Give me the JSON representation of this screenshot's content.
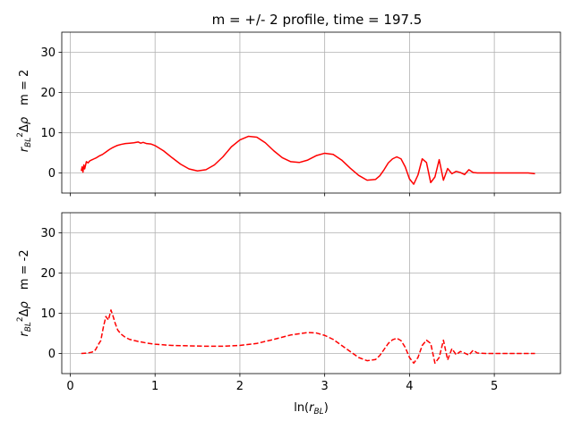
{
  "figure": {
    "title": "m = +/- 2 profile, time = 197.5"
  },
  "chart_data": [
    {
      "type": "line",
      "panel": "top",
      "title": "m = +/- 2 profile, time = 197.5",
      "ylabel_math": "r_{BL}^2 Δρ",
      "ylabel_suffix": "m = 2",
      "xlabel": "",
      "xlim": [
        -0.1,
        5.78
      ],
      "ylim": [
        -5,
        35
      ],
      "xticks": [
        0,
        1,
        2,
        3,
        4,
        5
      ],
      "yticks": [
        0,
        10,
        20,
        30
      ],
      "grid": true,
      "series": [
        {
          "color": "#ff0000",
          "linestyle": "solid",
          "x": [
            0.13,
            0.14,
            0.15,
            0.16,
            0.17,
            0.19,
            0.21,
            0.23,
            0.25,
            0.28,
            0.31,
            0.34,
            0.38,
            0.42,
            0.46,
            0.5,
            0.55,
            0.6,
            0.65,
            0.7,
            0.75,
            0.8,
            0.83,
            0.86,
            0.9,
            0.95,
            1.0,
            1.1,
            1.2,
            1.3,
            1.4,
            1.5,
            1.6,
            1.7,
            1.8,
            1.9,
            2.0,
            2.1,
            2.2,
            2.3,
            2.4,
            2.5,
            2.6,
            2.7,
            2.8,
            2.9,
            3.0,
            3.1,
            3.2,
            3.3,
            3.4,
            3.5,
            3.6,
            3.65,
            3.7,
            3.75,
            3.8,
            3.85,
            3.9,
            3.95,
            4.0,
            4.05,
            4.1,
            4.15,
            4.2,
            4.25,
            4.3,
            4.35,
            4.4,
            4.45,
            4.5,
            4.55,
            4.6,
            4.65,
            4.7,
            4.75,
            4.8,
            4.9,
            5.0,
            5.1,
            5.2,
            5.3,
            5.4,
            5.48
          ],
          "y": [
            0.5,
            1.5,
            0.2,
            2.0,
            1.0,
            2.8,
            2.5,
            3.0,
            3.2,
            3.5,
            3.8,
            4.2,
            4.6,
            5.2,
            5.8,
            6.3,
            6.8,
            7.1,
            7.3,
            7.4,
            7.5,
            7.7,
            7.4,
            7.6,
            7.3,
            7.2,
            6.8,
            5.5,
            3.8,
            2.2,
            1.0,
            0.5,
            0.8,
            2.0,
            4.0,
            6.5,
            8.2,
            9.1,
            8.9,
            7.5,
            5.5,
            3.8,
            2.8,
            2.6,
            3.2,
            4.3,
            4.9,
            4.6,
            3.2,
            1.2,
            -0.6,
            -1.8,
            -1.6,
            -0.7,
            0.8,
            2.5,
            3.5,
            4.0,
            3.5,
            1.5,
            -1.5,
            -2.8,
            -0.5,
            3.5,
            2.6,
            -2.4,
            -1.0,
            3.3,
            -1.8,
            1.1,
            -0.2,
            0.4,
            0.1,
            -0.4,
            0.8,
            0.1,
            0.0,
            0.0,
            0.0,
            0.0,
            0.0,
            0.0,
            0.0,
            -0.2
          ]
        }
      ]
    },
    {
      "type": "line",
      "panel": "bottom",
      "title": "",
      "ylabel_math": "r_{BL}^2 Δρ",
      "ylabel_suffix": "m = -2",
      "xlabel": "ln(r_{BL})",
      "xlim": [
        -0.1,
        5.78
      ],
      "ylim": [
        -5,
        35
      ],
      "xticks": [
        0,
        1,
        2,
        3,
        4,
        5
      ],
      "yticks": [
        0,
        10,
        20,
        30
      ],
      "grid": true,
      "series": [
        {
          "color": "#ff0000",
          "linestyle": "dashed",
          "x": [
            0.13,
            0.2,
            0.25,
            0.28,
            0.3,
            0.33,
            0.36,
            0.39,
            0.42,
            0.45,
            0.48,
            0.5,
            0.53,
            0.56,
            0.6,
            0.65,
            0.7,
            0.8,
            0.9,
            1.0,
            1.2,
            1.4,
            1.6,
            1.8,
            2.0,
            2.2,
            2.4,
            2.6,
            2.8,
            2.9,
            3.0,
            3.1,
            3.2,
            3.3,
            3.4,
            3.5,
            3.6,
            3.65,
            3.7,
            3.75,
            3.8,
            3.85,
            3.9,
            3.95,
            4.0,
            4.05,
            4.1,
            4.15,
            4.2,
            4.25,
            4.3,
            4.35,
            4.4,
            4.45,
            4.5,
            4.55,
            4.6,
            4.65,
            4.7,
            4.75,
            4.8,
            4.9,
            5.0,
            5.1,
            5.2,
            5.3,
            5.4,
            5.48
          ],
          "y": [
            0.0,
            0.1,
            0.3,
            0.5,
            1.0,
            2.2,
            3.2,
            6.5,
            9.2,
            8.3,
            10.8,
            9.6,
            7.5,
            5.8,
            4.8,
            4.0,
            3.5,
            3.0,
            2.6,
            2.3,
            2.0,
            1.9,
            1.8,
            1.8,
            2.0,
            2.5,
            3.5,
            4.6,
            5.2,
            5.1,
            4.5,
            3.5,
            2.0,
            0.5,
            -1.0,
            -1.8,
            -1.5,
            -0.5,
            1.0,
            2.5,
            3.4,
            3.8,
            3.2,
            1.5,
            -1.0,
            -2.4,
            -1.0,
            2.0,
            3.3,
            2.5,
            -2.4,
            -1.0,
            3.3,
            -1.6,
            1.2,
            -0.3,
            0.5,
            0.1,
            -0.4,
            0.8,
            0.1,
            0.0,
            0.0,
            0.0,
            0.0,
            0.0,
            0.0,
            0.0
          ]
        }
      ]
    }
  ]
}
